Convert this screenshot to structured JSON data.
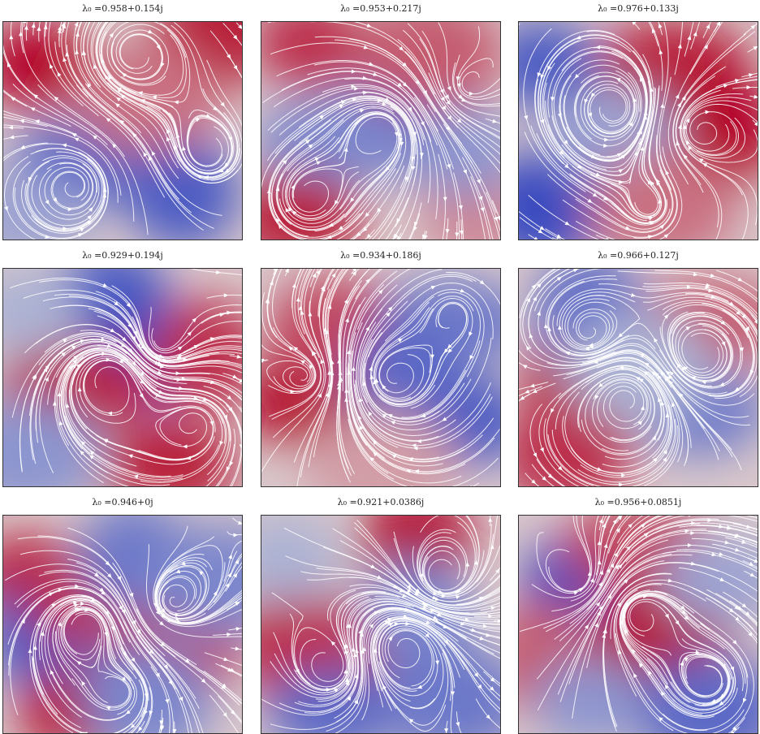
{
  "chart_data": [
    {
      "type": "heatmap",
      "subtype": "streamplot",
      "title": "λ₀ =0.958+0.154j",
      "colormap": "coolwarm",
      "grid": false,
      "blobs": [
        [
          0.15,
          0.2,
          1
        ],
        [
          0.9,
          0.05,
          0.9
        ],
        [
          0.35,
          0.65,
          -0.8
        ],
        [
          0.75,
          0.78,
          -0.9
        ],
        [
          0.1,
          0.9,
          -0.4
        ],
        [
          0.6,
          0.35,
          0.5
        ]
      ],
      "flow": [
        [
          0.55,
          0.15,
          1
        ],
        [
          0.3,
          0.75,
          -1
        ],
        [
          0.85,
          0.6,
          0.6
        ]
      ]
    },
    {
      "type": "heatmap",
      "subtype": "streamplot",
      "title": "λ₀ =0.953+0.217j",
      "colormap": "coolwarm",
      "grid": false,
      "blobs": [
        [
          0.2,
          0.1,
          0.8
        ],
        [
          0.6,
          0.45,
          -1
        ],
        [
          0.3,
          0.55,
          -0.6
        ],
        [
          0.9,
          0.85,
          0.4
        ],
        [
          0.15,
          0.9,
          0.9
        ],
        [
          0.7,
          0.15,
          0.6
        ],
        [
          0.85,
          0.6,
          -0.5
        ]
      ],
      "flow": [
        [
          0.5,
          0.5,
          1
        ],
        [
          0.85,
          0.3,
          -0.6
        ],
        [
          0.2,
          0.8,
          0.6
        ]
      ]
    },
    {
      "type": "heatmap",
      "subtype": "streamplot",
      "title": "λ₀ =0.976+0.133j",
      "colormap": "coolwarm",
      "grid": false,
      "blobs": [
        [
          0.1,
          0.2,
          -0.9
        ],
        [
          0.1,
          0.85,
          -1
        ],
        [
          0.65,
          0.2,
          0.9
        ],
        [
          0.85,
          0.5,
          1
        ],
        [
          0.4,
          0.5,
          -0.4
        ],
        [
          0.6,
          0.85,
          0.5
        ]
      ],
      "flow": [
        [
          0.4,
          0.4,
          -1
        ],
        [
          0.75,
          0.5,
          0.8
        ],
        [
          0.55,
          0.85,
          -0.5
        ]
      ]
    },
    {
      "type": "heatmap",
      "subtype": "streamplot",
      "title": "λ₀ =0.929+0.194j",
      "colormap": "coolwarm",
      "grid": false,
      "blobs": [
        [
          0.45,
          0.1,
          -0.9
        ],
        [
          0.6,
          0.4,
          -1
        ],
        [
          0.3,
          0.55,
          0.9
        ],
        [
          0.85,
          0.4,
          0.8
        ],
        [
          0.7,
          0.9,
          0.9
        ],
        [
          0.1,
          0.85,
          -0.5
        ],
        [
          0.1,
          0.2,
          -0.3
        ]
      ],
      "flow": [
        [
          0.45,
          0.5,
          1
        ],
        [
          0.65,
          0.35,
          -0.8
        ],
        [
          0.8,
          0.7,
          0.6
        ]
      ]
    },
    {
      "type": "heatmap",
      "subtype": "streamplot",
      "title": "λ₀ =0.934+0.186j",
      "colormap": "coolwarm",
      "grid": false,
      "blobs": [
        [
          0.15,
          0.6,
          1
        ],
        [
          0.3,
          0.3,
          0.7
        ],
        [
          0.8,
          0.25,
          -0.7
        ],
        [
          0.6,
          0.5,
          -0.8
        ],
        [
          0.85,
          0.7,
          -0.9
        ],
        [
          0.5,
          0.9,
          0.3
        ]
      ],
      "flow": [
        [
          0.55,
          0.5,
          1
        ],
        [
          0.2,
          0.5,
          -0.6
        ],
        [
          0.8,
          0.2,
          0.7
        ]
      ]
    },
    {
      "type": "heatmap",
      "subtype": "streamplot",
      "title": "λ₀ =0.966+0.127j",
      "colormap": "coolwarm",
      "grid": false,
      "blobs": [
        [
          0.25,
          0.5,
          1
        ],
        [
          0.2,
          0.85,
          0.8
        ],
        [
          0.8,
          0.25,
          0.6
        ],
        [
          0.3,
          0.2,
          -0.8
        ],
        [
          0.75,
          0.65,
          -0.7
        ],
        [
          0.5,
          0.45,
          -0.3
        ]
      ],
      "flow": [
        [
          0.45,
          0.6,
          -1
        ],
        [
          0.75,
          0.4,
          0.7
        ],
        [
          0.3,
          0.3,
          0.6
        ]
      ]
    },
    {
      "type": "heatmap",
      "subtype": "streamplot",
      "title": "λ₀ =0.946+0j",
      "colormap": "coolwarm",
      "grid": false,
      "blobs": [
        [
          0.1,
          0.3,
          0.9
        ],
        [
          0.2,
          0.55,
          -0.9
        ],
        [
          0.4,
          0.4,
          0.8
        ],
        [
          0.55,
          0.2,
          -0.7
        ],
        [
          0.75,
          0.6,
          0.7
        ],
        [
          0.9,
          0.3,
          -0.6
        ],
        [
          0.3,
          0.9,
          0.9
        ],
        [
          0.6,
          0.85,
          -0.6
        ]
      ],
      "flow": [
        [
          0.35,
          0.5,
          1
        ],
        [
          0.7,
          0.4,
          -1
        ],
        [
          0.5,
          0.8,
          0.6
        ]
      ]
    },
    {
      "type": "heatmap",
      "subtype": "streamplot",
      "title": "λ₀ =0.921+0.0386j",
      "colormap": "coolwarm",
      "grid": false,
      "blobs": [
        [
          0.65,
          0.1,
          1
        ],
        [
          0.15,
          0.6,
          0.8
        ],
        [
          0.45,
          0.6,
          0.8
        ],
        [
          0.65,
          0.45,
          -0.6
        ],
        [
          0.3,
          0.9,
          -0.8
        ],
        [
          0.8,
          0.85,
          -0.7
        ],
        [
          0.1,
          0.2,
          -0.3
        ]
      ],
      "flow": [
        [
          0.6,
          0.6,
          1
        ],
        [
          0.75,
          0.3,
          -0.7
        ],
        [
          0.3,
          0.7,
          -0.5
        ]
      ]
    },
    {
      "type": "heatmap",
      "subtype": "streamplot",
      "title": "λ₀ =0.956+0.0851j",
      "colormap": "coolwarm",
      "grid": false,
      "blobs": [
        [
          0.25,
          0.3,
          -1
        ],
        [
          0.6,
          0.55,
          1
        ],
        [
          0.5,
          0.15,
          0.7
        ],
        [
          0.1,
          0.65,
          0.6
        ],
        [
          0.85,
          0.3,
          -0.4
        ],
        [
          0.8,
          0.9,
          -0.8
        ],
        [
          0.3,
          0.85,
          -0.5
        ]
      ],
      "flow": [
        [
          0.5,
          0.45,
          1
        ],
        [
          0.25,
          0.3,
          -0.8
        ],
        [
          0.8,
          0.75,
          0.5
        ]
      ]
    }
  ]
}
